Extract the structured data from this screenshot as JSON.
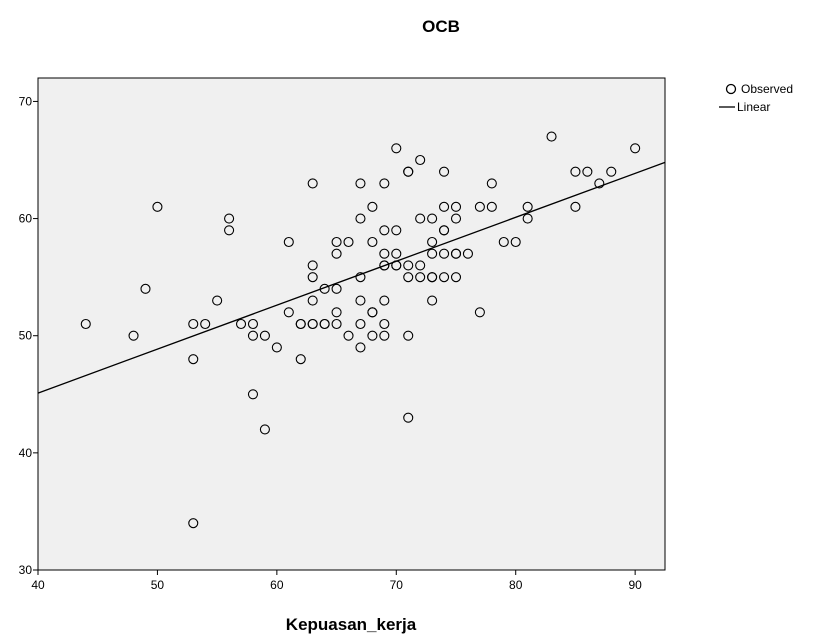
{
  "chart_data": {
    "type": "scatter",
    "title": "OCB",
    "xlabel": "Kepuasan_kerja",
    "ylabel": "",
    "xlim": [
      40,
      92.5
    ],
    "ylim": [
      30,
      72
    ],
    "xticks": [
      "40",
      "50",
      "60",
      "70",
      "80",
      "90"
    ],
    "yticks": [
      "30",
      "40",
      "50",
      "60",
      "70"
    ],
    "grid": false,
    "legend_position": "top-right-outside",
    "plot_background": "#f0f0f0",
    "series": [
      {
        "name": "Observed",
        "marker": "open-circle",
        "x": [
          44,
          48,
          49,
          50,
          53,
          53,
          53,
          54,
          55,
          56,
          56,
          57,
          58,
          58,
          58,
          59,
          59,
          60,
          61,
          61,
          62,
          62,
          62,
          63,
          63,
          63,
          63,
          63,
          63,
          64,
          64,
          64,
          65,
          65,
          65,
          65,
          65,
          66,
          66,
          67,
          67,
          67,
          67,
          67,
          67,
          68,
          68,
          68,
          68,
          68,
          69,
          69,
          69,
          69,
          69,
          69,
          69,
          69,
          70,
          70,
          70,
          70,
          70,
          71,
          71,
          71,
          71,
          71,
          71,
          72,
          72,
          72,
          72,
          73,
          73,
          73,
          73,
          73,
          73,
          74,
          74,
          74,
          74,
          74,
          74,
          75,
          75,
          75,
          75,
          75,
          76,
          77,
          77,
          78,
          78,
          79,
          80,
          81,
          81,
          83,
          85,
          85,
          86,
          87,
          88,
          90
        ],
        "y": [
          51,
          50,
          54,
          61,
          51,
          48,
          34,
          51,
          53,
          60,
          59,
          51,
          51,
          50,
          45,
          50,
          42,
          49,
          58,
          52,
          51,
          51,
          48,
          63,
          56,
          55,
          53,
          51,
          51,
          54,
          51,
          51,
          58,
          57,
          54,
          52,
          51,
          58,
          50,
          63,
          60,
          55,
          53,
          51,
          49,
          61,
          58,
          52,
          52,
          50,
          63,
          59,
          57,
          56,
          56,
          53,
          51,
          50,
          66,
          59,
          57,
          56,
          56,
          64,
          64,
          56,
          55,
          50,
          43,
          65,
          60,
          56,
          55,
          60,
          58,
          57,
          55,
          55,
          53,
          64,
          61,
          59,
          59,
          57,
          55,
          61,
          60,
          57,
          57,
          55,
          57,
          61,
          52,
          63,
          61,
          58,
          58,
          61,
          60,
          67,
          64,
          61,
          64,
          63,
          64,
          66
        ]
      }
    ],
    "fit_line": {
      "name": "Linear",
      "points": [
        [
          40,
          45.1
        ],
        [
          92.5,
          64.8
        ]
      ]
    }
  }
}
